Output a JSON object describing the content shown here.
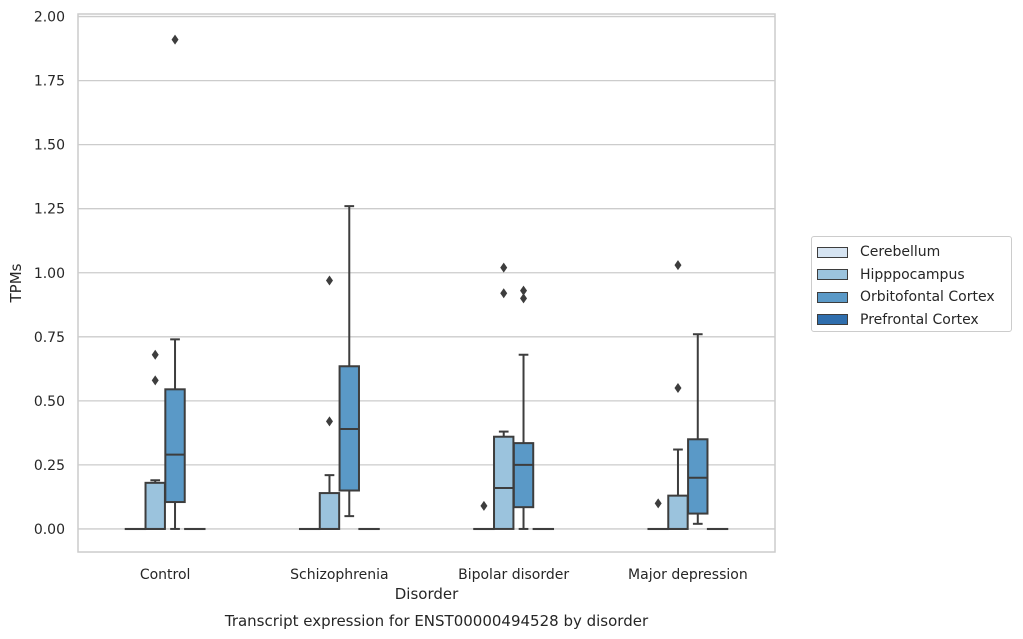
{
  "chart_data": {
    "type": "box",
    "title": "Transcript expression for ENST00000494528 by disorder",
    "xlabel": "Disorder",
    "ylabel": "TPMs",
    "ylim": [
      -0.09,
      2.01
    ],
    "yticks": [
      0.0,
      0.25,
      0.5,
      0.75,
      1.0,
      1.25,
      1.5,
      1.75,
      2.0
    ],
    "ytick_labels": [
      "0.00",
      "0.25",
      "0.50",
      "0.75",
      "1.00",
      "1.25",
      "1.50",
      "1.75",
      "2.00"
    ],
    "grid": "horizontal",
    "legend_position": "right",
    "categories": [
      "Control",
      "Schizophrenia",
      "Bipolar disorder",
      "Major depression"
    ],
    "series": [
      {
        "name": "Cerebellum",
        "color": "#d6e4f2",
        "boxes": [
          {
            "whislo": 0,
            "q1": 0,
            "med": 0,
            "q3": 0,
            "whishi": 0,
            "fliers": []
          },
          {
            "whislo": 0,
            "q1": 0,
            "med": 0,
            "q3": 0,
            "whishi": 0,
            "fliers": []
          },
          {
            "whislo": 0,
            "q1": 0,
            "med": 0,
            "q3": 0,
            "whishi": 0,
            "fliers": [
              0.09
            ]
          },
          {
            "whislo": 0,
            "q1": 0,
            "med": 0,
            "q3": 0,
            "whishi": 0,
            "fliers": [
              0.1
            ]
          }
        ]
      },
      {
        "name": "Hipppocampus",
        "color": "#9bc3dd",
        "boxes": [
          {
            "whislo": 0,
            "q1": 0,
            "med": 0,
            "q3": 0.18,
            "whishi": 0.19,
            "fliers": [
              0.58,
              0.68
            ]
          },
          {
            "whislo": 0,
            "q1": 0,
            "med": 0,
            "q3": 0.14,
            "whishi": 0.21,
            "fliers": [
              0.42,
              0.97
            ]
          },
          {
            "whislo": 0,
            "q1": 0,
            "med": 0.16,
            "q3": 0.36,
            "whishi": 0.38,
            "fliers": [
              0.92,
              1.02
            ]
          },
          {
            "whislo": 0,
            "q1": 0,
            "med": 0,
            "q3": 0.13,
            "whishi": 0.31,
            "fliers": [
              0.55,
              1.03
            ]
          }
        ]
      },
      {
        "name": "Orbitofontal Cortex",
        "color": "#5a99c7",
        "boxes": [
          {
            "whislo": 0,
            "q1": 0.105,
            "med": 0.29,
            "q3": 0.545,
            "whishi": 0.74,
            "fliers": [
              1.91
            ]
          },
          {
            "whislo": 0.05,
            "q1": 0.15,
            "med": 0.39,
            "q3": 0.635,
            "whishi": 1.26,
            "fliers": []
          },
          {
            "whislo": 0,
            "q1": 0.085,
            "med": 0.25,
            "q3": 0.335,
            "whishi": 0.68,
            "fliers": [
              0.9,
              0.93
            ]
          },
          {
            "whislo": 0.02,
            "q1": 0.06,
            "med": 0.2,
            "q3": 0.35,
            "whishi": 0.76,
            "fliers": []
          }
        ]
      },
      {
        "name": "Prefrontal Cortex",
        "color": "#2f6ead",
        "boxes": [
          {
            "whislo": 0,
            "q1": 0,
            "med": 0,
            "q3": 0,
            "whishi": 0,
            "fliers": []
          },
          {
            "whislo": 0,
            "q1": 0,
            "med": 0,
            "q3": 0,
            "whishi": 0,
            "fliers": []
          },
          {
            "whislo": 0,
            "q1": 0,
            "med": 0,
            "q3": 0,
            "whishi": 0,
            "fliers": []
          },
          {
            "whislo": 0,
            "q1": 0,
            "med": 0,
            "q3": 0,
            "whishi": 0,
            "fliers": []
          }
        ]
      }
    ]
  }
}
